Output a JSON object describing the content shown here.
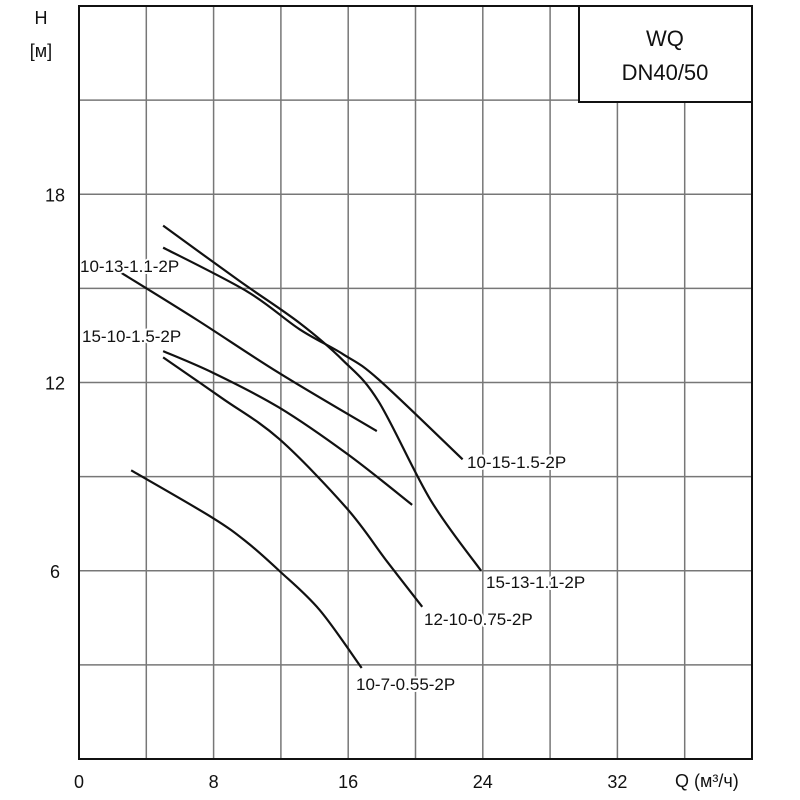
{
  "chart_data": {
    "type": "line",
    "title": [
      "WQ",
      "DN40/50"
    ],
    "xlabel": "Q (м³/ч)",
    "ylabel": [
      "H",
      "[м]"
    ],
    "xlim": [
      0,
      40
    ],
    "ylim": [
      0,
      24
    ],
    "x_ticks": [
      0,
      8,
      16,
      24,
      32
    ],
    "y_ticks": [
      6,
      12,
      18
    ],
    "x_grid_step": 4,
    "y_grid_step": 3,
    "grid": true,
    "colors": {
      "line": "#111111",
      "grid": "#777777"
    },
    "series": [
      {
        "name": "15-13-1.1-2P",
        "points": [
          [
            5,
            17.0
          ],
          [
            9.5,
            15.25
          ],
          [
            13.1,
            13.9
          ],
          [
            15.7,
            12.7
          ],
          [
            17.8,
            11.4
          ],
          [
            20.9,
            8.25
          ],
          [
            23.9,
            6.0
          ]
        ]
      },
      {
        "name": "10-15-1.5-2P",
        "points": [
          [
            5,
            16.3
          ],
          [
            10,
            14.9
          ],
          [
            13.1,
            13.7
          ],
          [
            15.7,
            12.9
          ],
          [
            17.8,
            12.1
          ],
          [
            22.8,
            9.55
          ]
        ]
      },
      {
        "name": "10-13-1.1-2P",
        "points": [
          [
            2.5,
            15.5
          ],
          [
            7,
            14.0
          ],
          [
            11.9,
            12.3
          ],
          [
            17.7,
            10.45
          ]
        ]
      },
      {
        "name": "15-10-1.5-2P",
        "points": [
          [
            5,
            13.0
          ],
          [
            8,
            12.3
          ],
          [
            11.9,
            11.2
          ],
          [
            16,
            9.7
          ],
          [
            19.8,
            8.1
          ]
        ]
      },
      {
        "name": "12-10-0.75-2P",
        "points": [
          [
            5,
            12.8
          ],
          [
            8.5,
            11.5
          ],
          [
            11.9,
            10.2
          ],
          [
            15.9,
            8.0
          ],
          [
            18.3,
            6.3
          ],
          [
            20.4,
            4.85
          ]
        ]
      },
      {
        "name": "10-7-0.55-2P",
        "points": [
          [
            3.1,
            9.2
          ],
          [
            7.9,
            7.7
          ],
          [
            10,
            6.9
          ],
          [
            11.9,
            6.0
          ],
          [
            14.3,
            4.75
          ],
          [
            16.8,
            2.9
          ]
        ]
      }
    ]
  }
}
